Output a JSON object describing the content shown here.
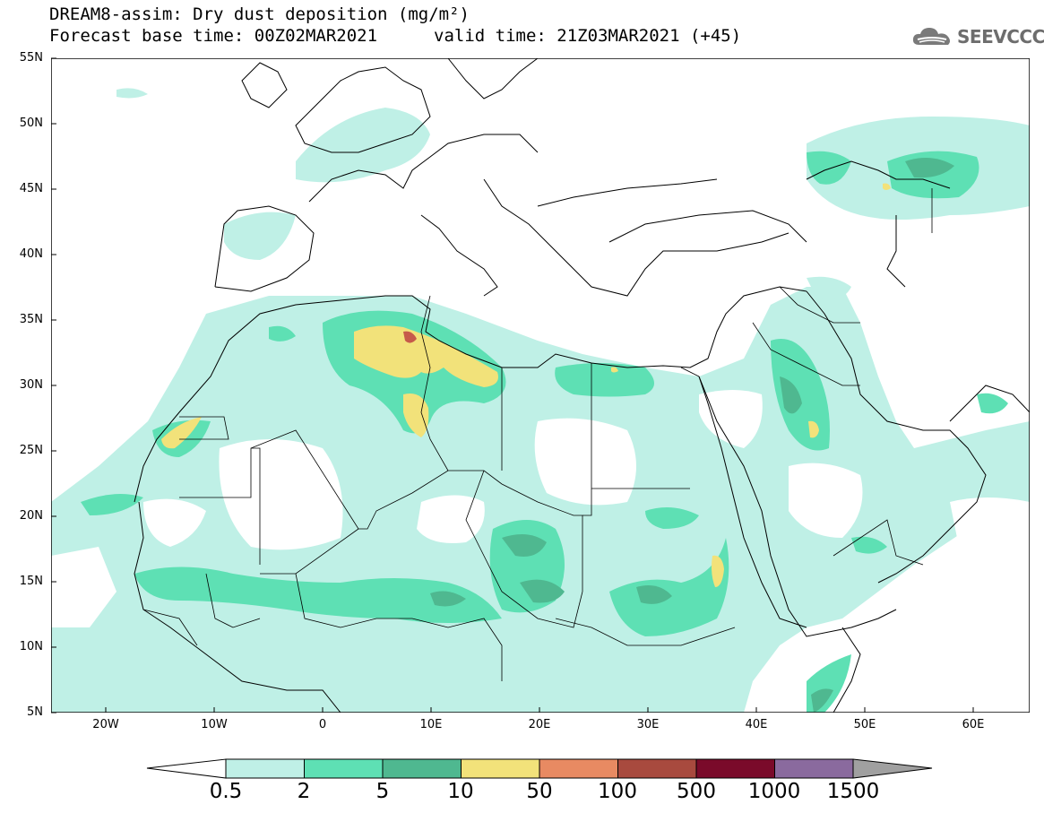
{
  "header": {
    "title_line1": "DREAM8-assim: Dry dust deposition (mg/m²)",
    "title_line2": "Forecast base time: 00Z02MAR2021",
    "valid_time": "valid time: 21Z03MAR2021 (+45)",
    "logo_text": "SEEVCCC",
    "logo_icon": "cloud-icon"
  },
  "map": {
    "region": "North Africa and Middle East",
    "lat_labels": [
      "55N",
      "50N",
      "45N",
      "40N",
      "35N",
      "30N",
      "25N",
      "20N",
      "15N",
      "10N",
      "5N"
    ],
    "lon_labels": [
      "20W",
      "10W",
      "0",
      "10E",
      "20E",
      "30E",
      "40E",
      "50E",
      "60E"
    ]
  },
  "legend": {
    "levels": [
      "0.5",
      "2",
      "5",
      "10",
      "50",
      "100",
      "500",
      "1000",
      "1500"
    ],
    "colors": [
      "#bff0e6",
      "#5ee0b4",
      "#4fb890",
      "#f2e27a",
      "#e88a62",
      "#a84a3e",
      "#7a0a2a",
      "#8a6a9e",
      "#a0a0a0"
    ]
  },
  "overlays": {
    "fill_colors": {
      "light": "#bff0e6",
      "medium": "#5ee0b4",
      "dark": "#4fb890",
      "yellow": "#f2e27a",
      "red": "#c65a4a"
    }
  }
}
